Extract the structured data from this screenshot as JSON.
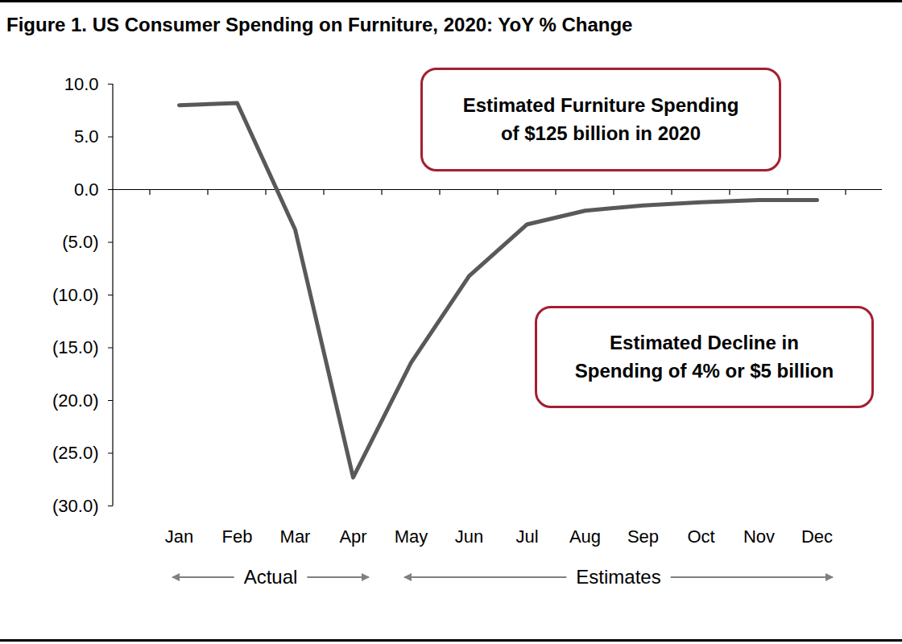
{
  "chart_data": {
    "type": "line",
    "title": "Figure 1. US Consumer Spending on Furniture, 2020: YoY % Change",
    "categories": [
      "Jan",
      "Feb",
      "Mar",
      "Apr",
      "May",
      "Jun",
      "Jul",
      "Aug",
      "Sep",
      "Oct",
      "Nov",
      "Dec"
    ],
    "values": [
      8.0,
      8.2,
      -3.8,
      -27.3,
      -16.4,
      -8.2,
      -3.3,
      -2.0,
      -1.5,
      -1.2,
      -1.0,
      -1.0
    ],
    "color": "#595959",
    "ylim": [
      -30,
      10
    ],
    "yticks": [
      {
        "value": 10,
        "label": "10.0"
      },
      {
        "value": 5,
        "label": "5.0"
      },
      {
        "value": 0,
        "label": "0.0"
      },
      {
        "value": -5,
        "label": "(5.0)"
      },
      {
        "value": -10,
        "label": "(10.0)"
      },
      {
        "value": -15,
        "label": "(15.0)"
      },
      {
        "value": -20,
        "label": "(20.0)"
      },
      {
        "value": -25,
        "label": "(25.0)"
      },
      {
        "value": -30,
        "label": "(30.0)"
      }
    ],
    "annotations": [
      {
        "text": "Estimated Furniture Spending\nof $125 billion in 2020"
      },
      {
        "text": "Estimated Decline in\nSpending of 4% or $5 billion"
      }
    ],
    "periods": [
      {
        "label": "Actual",
        "from": "Jan",
        "to": "Apr"
      },
      {
        "label": "Estimates",
        "from": "May",
        "to": "Dec"
      }
    ]
  }
}
